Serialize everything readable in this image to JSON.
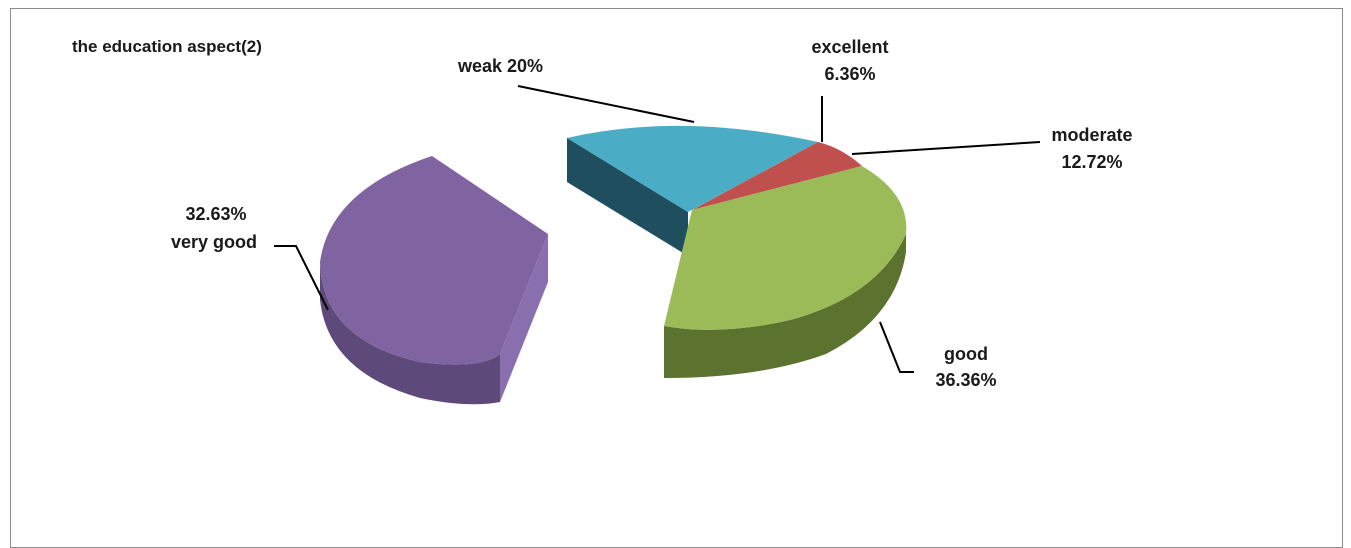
{
  "chart_data": {
    "type": "pie",
    "title": "the education aspect(2)",
    "three_d": true,
    "exploded": [
      "very good",
      "weak"
    ],
    "slices": [
      {
        "name": "excellent",
        "value": 6.36,
        "value_label": "6.36%",
        "color": "#C0504D"
      },
      {
        "name": "moderate",
        "value": 12.72,
        "value_label": "12.72%",
        "color": "#C0504D"
      },
      {
        "name": "good",
        "value": 36.36,
        "value_label": "36.36%",
        "color": "#9BBB59"
      },
      {
        "name": "very good",
        "value": 32.63,
        "value_label": "32.63%",
        "color": "#8064A2"
      },
      {
        "name": "weak",
        "value": 20,
        "value_label": "20%",
        "color": "#4BACC6"
      }
    ],
    "labels": {
      "weak": "weak 20%",
      "excellent_name": "excellent",
      "excellent_value": "6.36%",
      "moderate_name": "moderate",
      "moderate_value": "12.72%",
      "good_name": "good",
      "good_value": "36.36%",
      "very_good_value": "32.63%",
      "very_good_name": "very good"
    }
  }
}
